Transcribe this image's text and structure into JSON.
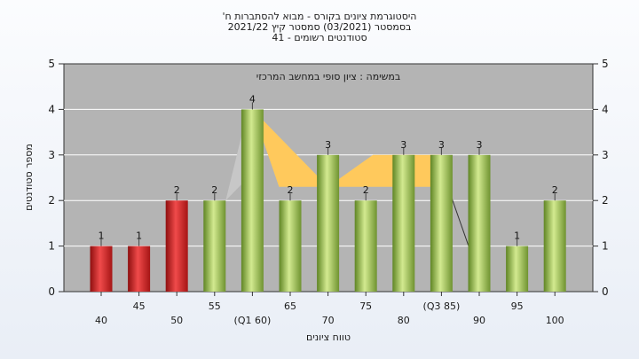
{
  "chart_data": {
    "type": "bar",
    "title_lines": [
      "'היסטוגרמת ציונים בקורס - מבוא להסתברות ח",
      "בסמסטר  (03/2021)  סמסטר קיץ  2021/22",
      "סטודנטים רשומים - 41"
    ],
    "inner_label": "במשימה : ציון סופי במחשב המרכזי",
    "xlabel": "טווח ציונים",
    "ylabel": "מספר סטודנטים",
    "ylim": [
      0,
      5
    ],
    "yticks": [
      "0",
      "1",
      "2",
      "3",
      "4",
      "5"
    ],
    "grid": true,
    "categories": [
      "40",
      "45",
      "50",
      "55",
      "(Q1 60)",
      "65",
      "70",
      "75",
      "80",
      "(Q3 85)",
      "90",
      "95",
      "100"
    ],
    "values": [
      1,
      1,
      2,
      2,
      4,
      2,
      3,
      2,
      3,
      3,
      3,
      1,
      2
    ],
    "value_labels": [
      "1",
      "1",
      "2",
      "2",
      "4",
      "2",
      "3",
      "2",
      "3",
      "3",
      "3",
      "1",
      "2"
    ],
    "bar_colors": [
      "red",
      "red",
      "red",
      "green",
      "green",
      "green",
      "green",
      "green",
      "green",
      "green",
      "green",
      "green",
      "green"
    ],
    "colors": {
      "red": "#d42222",
      "green": "#98bb4c",
      "plot_background": "#b4b4b4",
      "box_fill": "#ffc95c",
      "gridline": "#ffffff"
    }
  }
}
